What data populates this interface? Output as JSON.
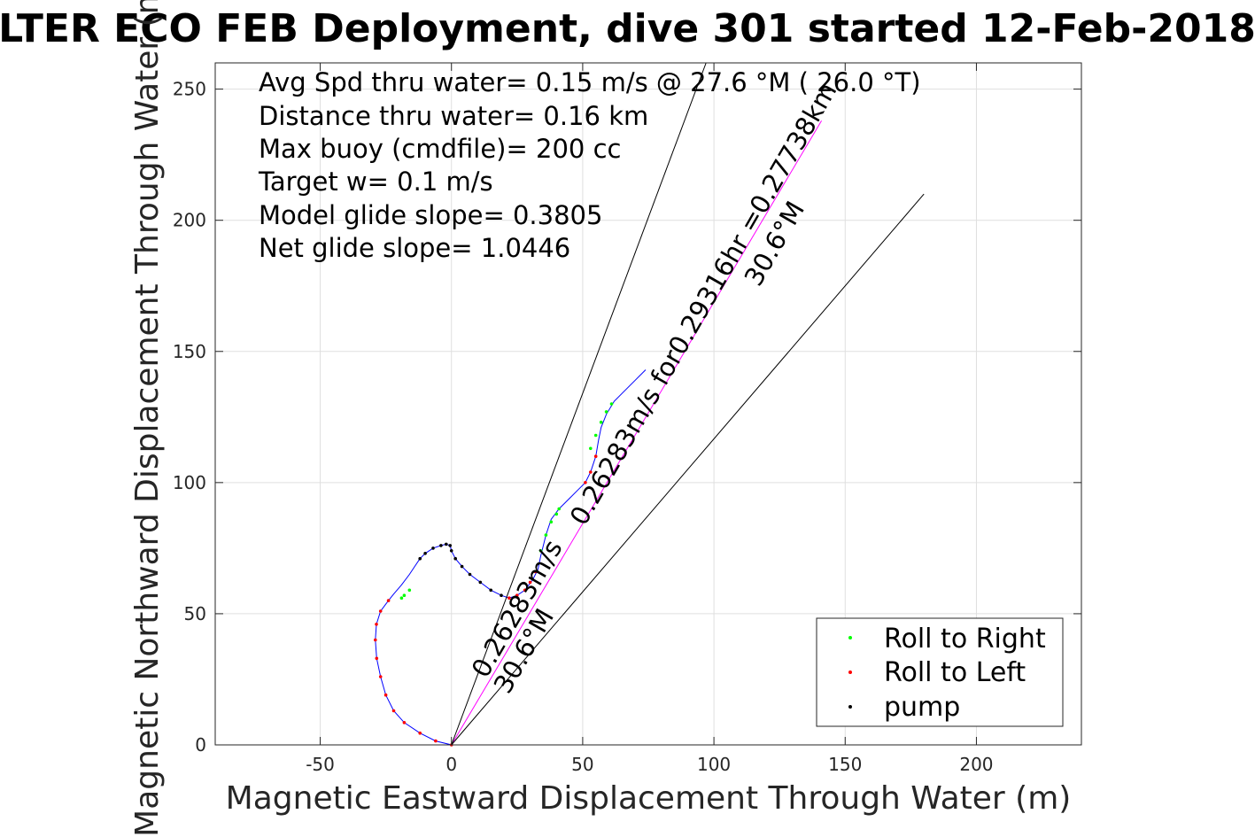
{
  "chart_data": {
    "type": "line",
    "title": "LTER ECO FEB Deployment, dive 301 started 12-Feb-2018",
    "xlabel": "Magnetic Eastward Displacement Through Water (m)",
    "ylabel": "Magnetic Northward Displacement Through Water (m)",
    "xlim": [
      -90,
      240
    ],
    "ylim": [
      0,
      260
    ],
    "xticks": [
      -50,
      0,
      50,
      100,
      150,
      200
    ],
    "yticks": [
      0,
      50,
      100,
      150,
      200,
      250
    ],
    "grid": true,
    "legend_position": "bottom-right",
    "annotations": [
      "Avg Spd thru water=  0.15 m/s @  27.6 °M ( 26.0 °T)",
      "Distance thru water=  0.16 km",
      "Max buoy (cmdfile)= 200 cc",
      "Target w= 0.1 m/s",
      "Model glide slope= 0.3805",
      "Net glide slope= 1.0446"
    ],
    "vector_labels": {
      "main_line1": "0.26283m/s for0.29316hr =0.27738km",
      "main_line2": "30.6°M",
      "short_line1": "0.26283m/s",
      "short_line2": "30.6°M"
    },
    "series": [
      {
        "name": "",
        "style": "line",
        "color": "#0000ff",
        "x": [
          0,
          -6,
          -12,
          -18,
          -22,
          -25,
          -27,
          -28.5,
          -29,
          -28.6,
          -27,
          -24,
          -22,
          -19,
          -16,
          -14,
          -12,
          -10,
          -7,
          -4,
          -2,
          -0.5,
          0,
          1.5,
          4,
          7,
          11,
          15,
          19,
          22,
          25,
          28,
          31,
          33,
          34,
          36,
          38,
          41,
          45,
          48,
          51,
          53,
          55,
          56,
          57,
          59,
          62,
          66,
          70,
          74
        ],
        "y": [
          0,
          1.5,
          4.5,
          8.5,
          13,
          19,
          26,
          33,
          40,
          46,
          51,
          55,
          57.5,
          61,
          65,
          68,
          71,
          73,
          75,
          76,
          76.5,
          76,
          74,
          71,
          68,
          65,
          62,
          59,
          57,
          56,
          57,
          59,
          63,
          67,
          72,
          80,
          86,
          90,
          94,
          97,
          100,
          104,
          110,
          116,
          121,
          126,
          131,
          135,
          139,
          143
        ]
      },
      {
        "name": "Roll to Right",
        "style": "markers",
        "color": "#00ff00",
        "x": [
          -16,
          -18,
          -19,
          34,
          36,
          38,
          40,
          41,
          53,
          55,
          57,
          59,
          61
        ],
        "y": [
          59,
          57,
          56,
          74,
          80,
          85,
          88,
          90,
          113,
          118,
          123,
          127,
          130
        ]
      },
      {
        "name": "Roll to Left",
        "style": "markers",
        "color": "#ff0000",
        "x": [
          0,
          -6,
          -12,
          -18,
          -22,
          -25,
          -27,
          -28.5,
          -29,
          -28.6,
          -27,
          -24,
          22,
          25,
          28,
          30,
          32,
          51,
          53,
          55
        ],
        "y": [
          0,
          1.5,
          4.5,
          8.5,
          13,
          19,
          26,
          33,
          40,
          46,
          51,
          55,
          56,
          57,
          59,
          62,
          66,
          100,
          104,
          110
        ]
      },
      {
        "name": "pump",
        "style": "markers",
        "color": "#000000",
        "x": [
          -12,
          -10,
          -7,
          -4,
          -2,
          -0.5,
          0,
          1.5,
          4,
          7,
          11,
          15,
          19
        ],
        "y": [
          71,
          73,
          75,
          76,
          76.5,
          76,
          74,
          71,
          68,
          65,
          62,
          59,
          57
        ]
      },
      {
        "name": "",
        "style": "line",
        "color": "#ff00ff",
        "x": [
          0,
          141
        ],
        "y": [
          0,
          238
        ]
      },
      {
        "name": "",
        "style": "line",
        "color": "#000000",
        "x": [
          0,
          97
        ],
        "y": [
          0,
          260
        ]
      },
      {
        "name": "",
        "style": "line",
        "color": "#000000",
        "x": [
          0,
          180
        ],
        "y": [
          0,
          210
        ]
      }
    ]
  }
}
